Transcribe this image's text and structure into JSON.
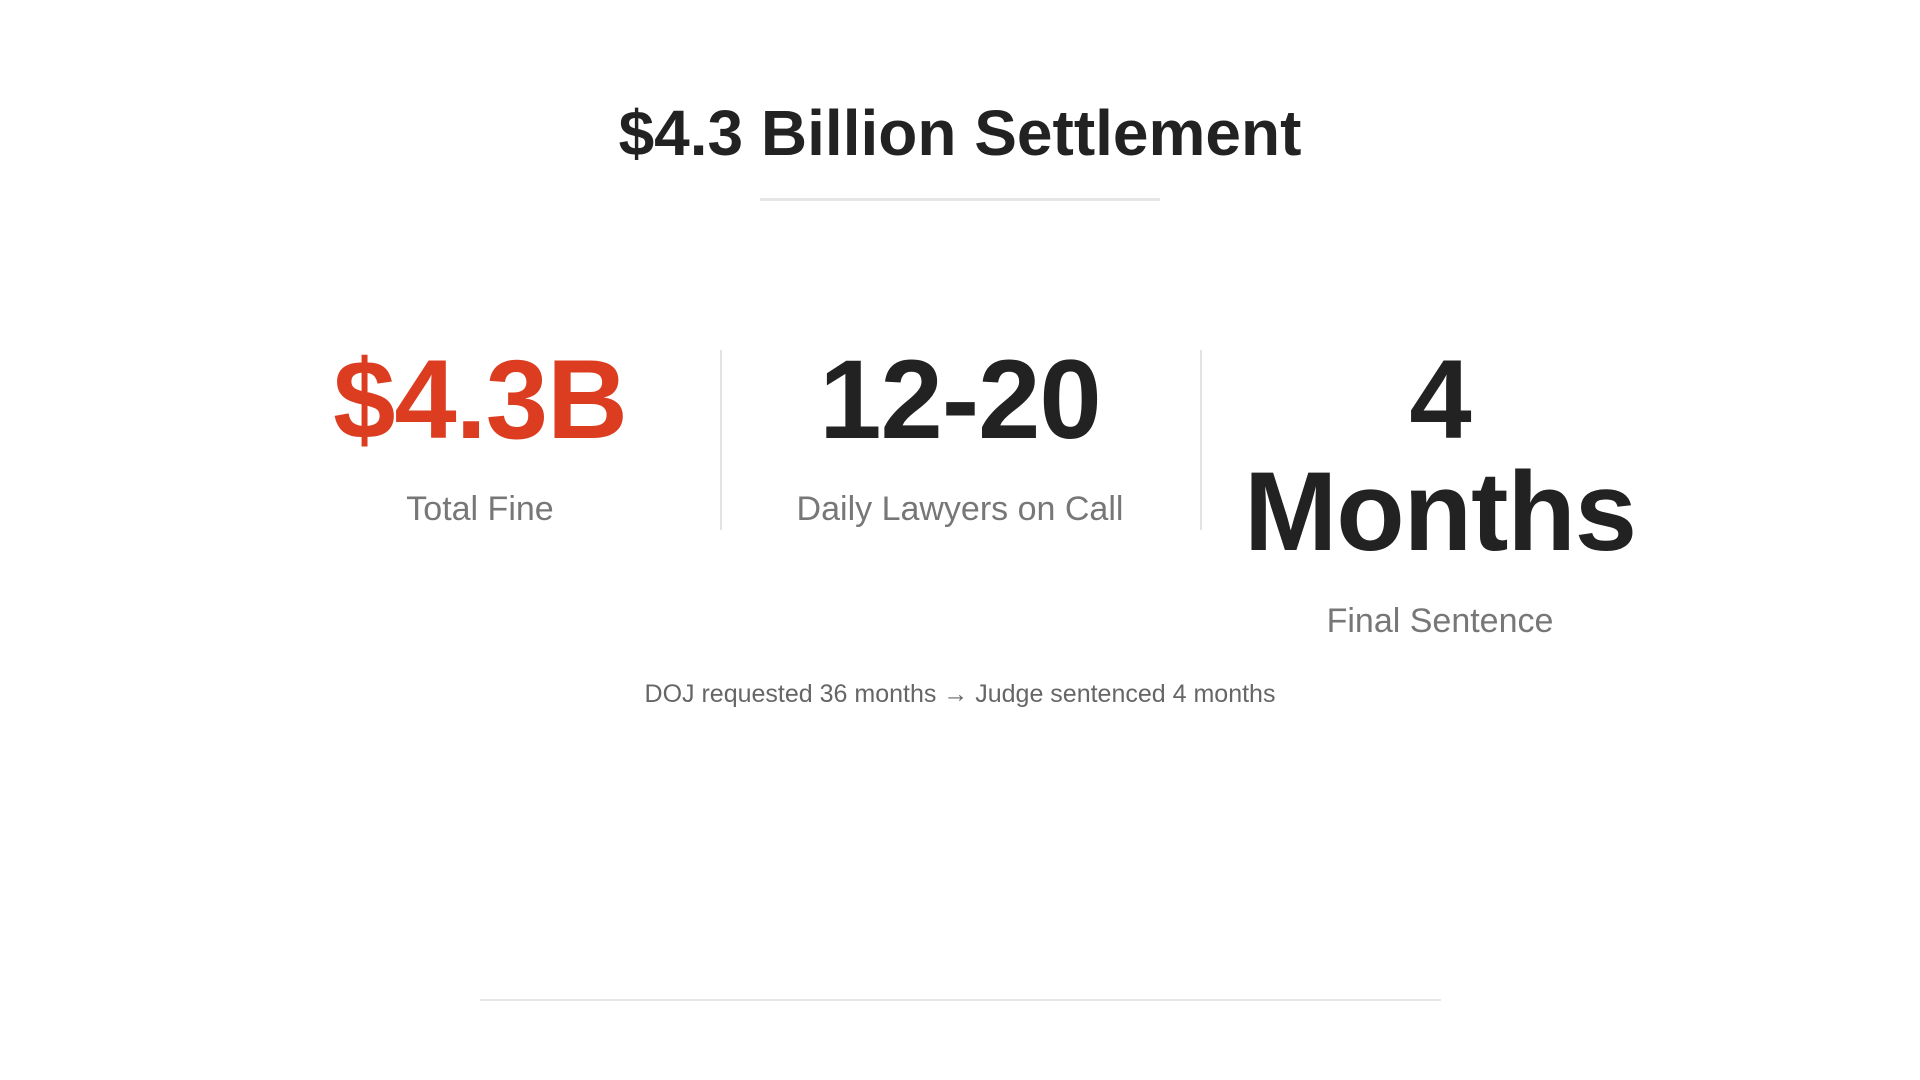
{
  "title": "$4.3 Billion Settlement",
  "stats": [
    {
      "value": "$4.3B",
      "label": "Total Fine",
      "color": "#dc3d20"
    },
    {
      "value": "12-20",
      "label": "Daily Lawyers on Call",
      "color": "#222222"
    },
    {
      "value": "4 Months",
      "label": "Final Sentence",
      "color": "#222222"
    }
  ],
  "note": "DOJ requested 36 months → Judge sentenced 4 months"
}
